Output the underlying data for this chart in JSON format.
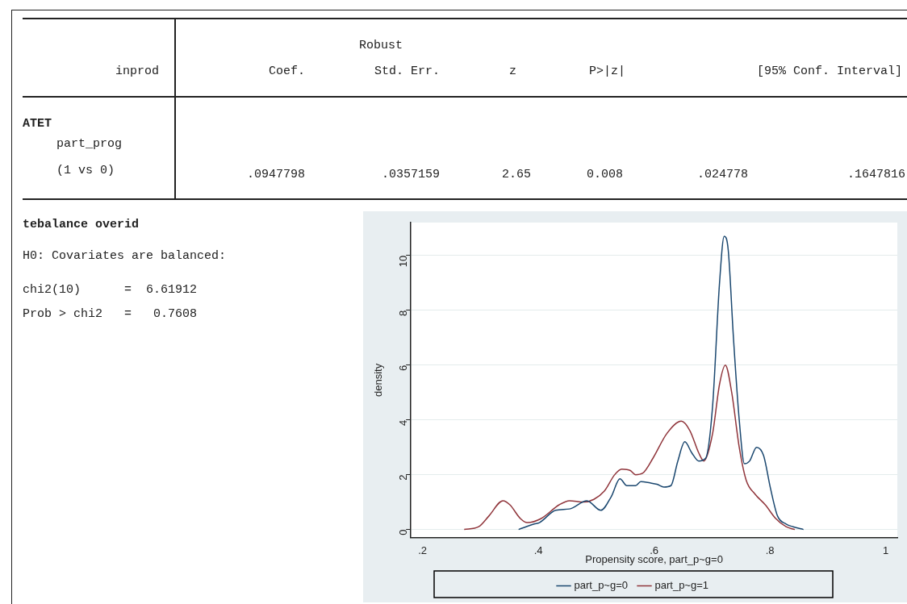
{
  "chart_data": [
    {
      "type": "other",
      "annotations": [
        "Robust",
        "inprod",
        "Coef.",
        "Std. Err.",
        "z",
        "P>|z|",
        "[95% Conf. Interval]",
        "ATET",
        "part_prog",
        "(1 vs 0)",
        ".0947798",
        ".0357159",
        "2.65",
        "0.008",
        ".024778",
        ".1647816",
        "tebalance overid",
        "H0: Covariates are balanced:",
        "chi2(10)      =  6.61912",
        "Prob > chi2   =   0.7608"
      ]
    },
    {
      "type": "line",
      "xlabel": "Propensity score, part_p~g=0",
      "ylabel": "density",
      "xlim": [
        0.18,
        1.02
      ],
      "ylim": [
        -0.3,
        11.2
      ],
      "xticks": [
        {
          "value": 0.2,
          "label": ".2"
        },
        {
          "value": 0.4,
          "label": ".4"
        },
        {
          "value": 0.6,
          "label": ".6"
        },
        {
          "value": 0.8,
          "label": ".8"
        },
        1
      ],
      "yticks": [
        0,
        2,
        4,
        6,
        8,
        10
      ],
      "grid": "y",
      "legend": "bottom",
      "marker": "none",
      "line_style": "solid",
      "series": [
        {
          "name": "part_p~g=0",
          "color": "#1a476f",
          "x": [
            0.366,
            0.393,
            0.402,
            0.43,
            0.454,
            0.484,
            0.508,
            0.526,
            0.541,
            0.553,
            0.568,
            0.577,
            0.593,
            0.605,
            0.617,
            0.629,
            0.641,
            0.653,
            0.665,
            0.677,
            0.689,
            0.701,
            0.713,
            0.721,
            0.728,
            0.737,
            0.747,
            0.756,
            0.765,
            0.777,
            0.789,
            0.801,
            0.813,
            0.828,
            0.84,
            0.858
          ],
          "values": [
            0,
            0.2,
            0.25,
            0.7,
            0.75,
            1.05,
            0.7,
            1.2,
            1.85,
            1.6,
            1.6,
            1.75,
            1.7,
            1.65,
            1.55,
            1.6,
            2.5,
            3.2,
            2.8,
            2.5,
            2.6,
            4.5,
            9,
            10.7,
            10.2,
            7,
            4,
            2.4,
            2.5,
            3,
            2.7,
            1.5,
            0.5,
            0.2,
            0.1,
            0
          ]
        },
        {
          "name": "part_p~g=1",
          "color": "#90353b",
          "x": [
            0.272,
            0.297,
            0.315,
            0.339,
            0.351,
            0.369,
            0.381,
            0.405,
            0.436,
            0.454,
            0.478,
            0.496,
            0.514,
            0.532,
            0.544,
            0.559,
            0.568,
            0.58,
            0.598,
            0.622,
            0.647,
            0.662,
            0.677,
            0.686,
            0.701,
            0.713,
            0.723,
            0.734,
            0.747,
            0.759,
            0.774,
            0.792,
            0.81,
            0.828,
            0.843
          ],
          "values": [
            0,
            0.1,
            0.5,
            1.05,
            0.9,
            0.4,
            0.25,
            0.4,
            0.9,
            1.05,
            1,
            1.1,
            1.4,
            2,
            2.2,
            2.15,
            2,
            2.05,
            2.6,
            3.5,
            3.95,
            3.6,
            2.8,
            2.5,
            3.5,
            5.3,
            6,
            5,
            3,
            1.8,
            1.3,
            0.9,
            0.4,
            0.1,
            0
          ]
        }
      ]
    }
  ]
}
